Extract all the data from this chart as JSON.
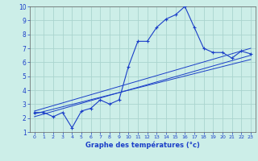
{
  "xlabel": "Graphe des températures (°c)",
  "background_color": "#cceee8",
  "grid_color": "#aad4ce",
  "line_color": "#1a3ec8",
  "xlim": [
    -0.5,
    23.5
  ],
  "ylim": [
    1,
    10
  ],
  "xticks": [
    0,
    1,
    2,
    3,
    4,
    5,
    6,
    7,
    8,
    9,
    10,
    11,
    12,
    13,
    14,
    15,
    16,
    17,
    18,
    19,
    20,
    21,
    22,
    23
  ],
  "yticks": [
    1,
    2,
    3,
    4,
    5,
    6,
    7,
    8,
    9,
    10
  ],
  "main_x": [
    0,
    1,
    2,
    3,
    4,
    5,
    6,
    7,
    8,
    9,
    10,
    11,
    12,
    13,
    14,
    15,
    16,
    17,
    18,
    19,
    20,
    21,
    22,
    23
  ],
  "main_y": [
    2.4,
    2.4,
    2.1,
    2.4,
    1.3,
    2.5,
    2.7,
    3.3,
    3.0,
    3.3,
    5.7,
    7.5,
    7.5,
    8.5,
    9.1,
    9.4,
    10.0,
    8.5,
    7.0,
    6.7,
    6.7,
    6.3,
    6.8,
    6.6
  ],
  "trend1_x": [
    0,
    23
  ],
  "trend1_y": [
    2.1,
    6.5
  ],
  "trend2_x": [
    0,
    23
  ],
  "trend2_y": [
    2.3,
    6.2
  ],
  "trend3_x": [
    0,
    23
  ],
  "trend3_y": [
    2.5,
    7.0
  ]
}
